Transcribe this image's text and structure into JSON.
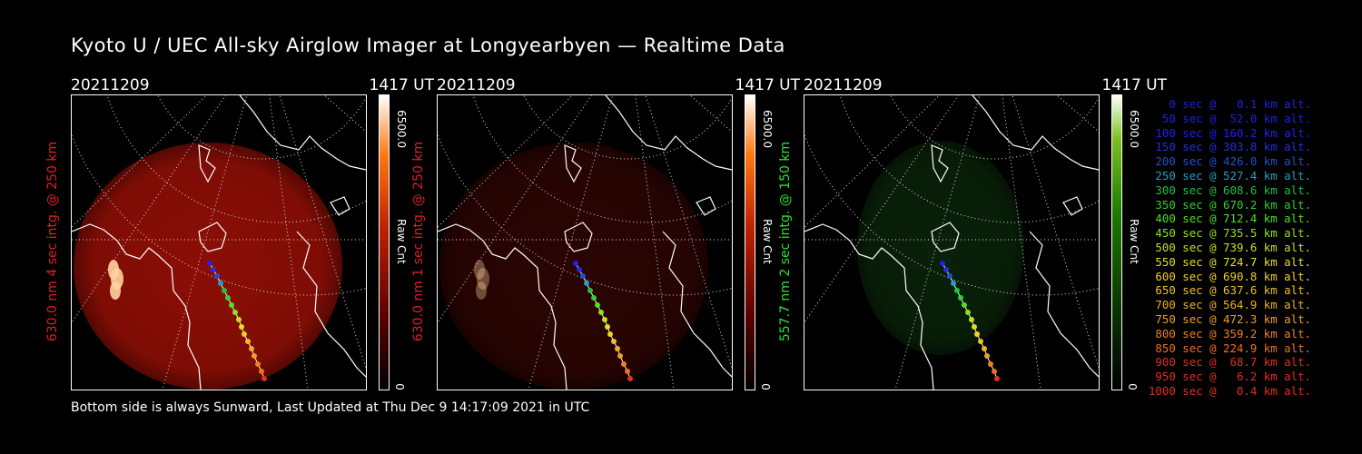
{
  "title": "Kyoto U / UEC All-sky Airglow Imager at Longyearbyen — Realtime Data",
  "footer": "Bottom side is always Sunward, Last Updated at Thu Dec  9 14:17:09 2021 in UTC",
  "panels": [
    {
      "date": "20211209",
      "time": "1417 UT",
      "label": "630.0 nm 4 sec intg. @ 250 km",
      "label_color": "#e02020",
      "cbar_max": "6500.0",
      "cbar_min": "0",
      "cbar_unit": "Raw Cnt",
      "colormap": "red",
      "intensity": 1.0
    },
    {
      "date": "20211209",
      "time": "1417 UT",
      "label": "630.0 nm 1 sec intg. @ 250 km",
      "label_color": "#e02020",
      "cbar_max": "6500.0",
      "cbar_min": "0",
      "cbar_unit": "Raw Cnt",
      "colormap": "red",
      "intensity": 0.3
    },
    {
      "date": "20211209",
      "time": "1417 UT",
      "label": "557.7 nm 2 sec intg. @ 150 km",
      "label_color": "#30e030",
      "cbar_max": "6500.0",
      "cbar_min": "0",
      "cbar_unit": "Raw Cnt",
      "colormap": "green",
      "intensity": 0.45
    }
  ],
  "legend": [
    {
      "text": "0 sec @   0.1 km alt.",
      "color": "#2020e0"
    },
    {
      "text": "50 sec @  52.0 km alt.",
      "color": "#2020e0"
    },
    {
      "text": "100 sec @ 160.2 km alt.",
      "color": "#2020f0"
    },
    {
      "text": "150 sec @ 303.8 km alt.",
      "color": "#2030e0"
    },
    {
      "text": "200 sec @ 426.0 km alt.",
      "color": "#2050d0"
    },
    {
      "text": "250 sec @ 527.4 km alt.",
      "color": "#20a0c0"
    },
    {
      "text": "300 sec @ 608.6 km alt.",
      "color": "#20c040"
    },
    {
      "text": "350 sec @ 670.2 km alt.",
      "color": "#30d030"
    },
    {
      "text": "400 sec @ 712.4 km alt.",
      "color": "#50e020"
    },
    {
      "text": "450 sec @ 735.5 km alt.",
      "color": "#90e020"
    },
    {
      "text": "500 sec @ 739.6 km alt.",
      "color": "#c0e020"
    },
    {
      "text": "550 sec @ 724.7 km alt.",
      "color": "#e0e020"
    },
    {
      "text": "600 sec @ 690.8 km alt.",
      "color": "#f0d020"
    },
    {
      "text": "650 sec @ 637.6 km alt.",
      "color": "#f0c020"
    },
    {
      "text": "700 sec @ 564.9 km alt.",
      "color": "#f0b020"
    },
    {
      "text": "750 sec @ 472.3 km alt.",
      "color": "#f0a020"
    },
    {
      "text": "800 sec @ 359.2 km alt.",
      "color": "#f08020"
    },
    {
      "text": "850 sec @ 224.9 km alt.",
      "color": "#f07020"
    },
    {
      "text": "900 sec @  68.7 km alt.",
      "color": "#e03020"
    },
    {
      "text": "950 sec @   6.2 km alt.",
      "color": "#e03020"
    },
    {
      "text": "1000 sec @   0.4 km alt.",
      "color": "#e03020"
    }
  ]
}
